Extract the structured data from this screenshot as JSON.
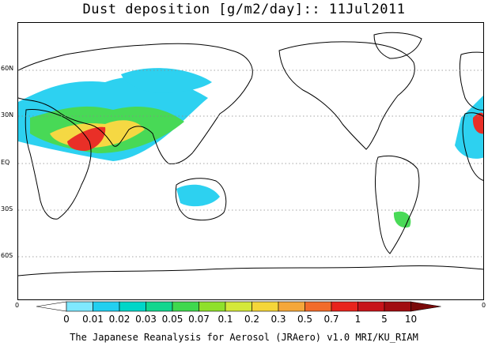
{
  "title": "Dust deposition [g/m2/day]:: 11Jul2011",
  "latitude_labels": [
    "60N",
    "30N",
    "EQ",
    "30S",
    "60S"
  ],
  "longitude_edge_labels": [
    "0",
    "0"
  ],
  "colorbar": {
    "labels": [
      "0",
      "0.01",
      "0.02",
      "0.03",
      "0.05",
      "0.07",
      "0.1",
      "0.2",
      "0.3",
      "0.5",
      "0.7",
      "1",
      "5",
      "10"
    ],
    "colors": [
      "#ffffff",
      "#7fe8ff",
      "#22cff0",
      "#00d6c8",
      "#13d68e",
      "#3fd84e",
      "#8fe02b",
      "#d4e83a",
      "#f5d639",
      "#f5a73a",
      "#f26b2a",
      "#e8241c",
      "#c7141a",
      "#a10c10",
      "#7a0a0a"
    ]
  },
  "credit": "The Japanese Reanalysis for Aerosol (JRAero) v1.0 MRI/KU_RIAM"
}
